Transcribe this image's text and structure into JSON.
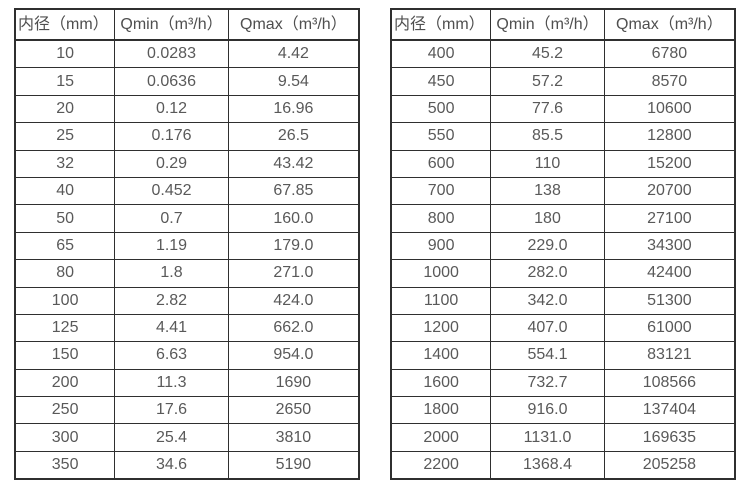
{
  "colors": {
    "border": "#2f2f2f",
    "header_text": "#4f4f4f",
    "cell_text": "#595959",
    "background": "#ffffff"
  },
  "chart_data": [
    {
      "type": "table",
      "title": "",
      "headers": [
        "内径（mm）",
        "Qmin（m³/h）",
        "Qmax（m³/h）"
      ],
      "rows": [
        [
          "10",
          "0.0283",
          "4.42"
        ],
        [
          "15",
          "0.0636",
          "9.54"
        ],
        [
          "20",
          "0.12",
          "16.96"
        ],
        [
          "25",
          "0.176",
          "26.5"
        ],
        [
          "32",
          "0.29",
          "43.42"
        ],
        [
          "40",
          "0.452",
          "67.85"
        ],
        [
          "50",
          "0.7",
          "160.0"
        ],
        [
          "65",
          "1.19",
          "179.0"
        ],
        [
          "80",
          "1.8",
          "271.0"
        ],
        [
          "100",
          "2.82",
          "424.0"
        ],
        [
          "125",
          "4.41",
          "662.0"
        ],
        [
          "150",
          "6.63",
          "954.0"
        ],
        [
          "200",
          "11.3",
          "1690"
        ],
        [
          "250",
          "17.6",
          "2650"
        ],
        [
          "300",
          "25.4",
          "3810"
        ],
        [
          "350",
          "34.6",
          "5190"
        ]
      ]
    },
    {
      "type": "table",
      "title": "",
      "headers": [
        "内径（mm）",
        "Qmin（m³/h）",
        "Qmax（m³/h）"
      ],
      "rows": [
        [
          "400",
          "45.2",
          "6780"
        ],
        [
          "450",
          "57.2",
          "8570"
        ],
        [
          "500",
          "77.6",
          "10600"
        ],
        [
          "550",
          "85.5",
          "12800"
        ],
        [
          "600",
          "110",
          "15200"
        ],
        [
          "700",
          "138",
          "20700"
        ],
        [
          "800",
          "180",
          "27100"
        ],
        [
          "900",
          "229.0",
          "34300"
        ],
        [
          "1000",
          "282.0",
          "42400"
        ],
        [
          "1100",
          "342.0",
          "51300"
        ],
        [
          "1200",
          "407.0",
          "61000"
        ],
        [
          "1400",
          "554.1",
          "83121"
        ],
        [
          "1600",
          "732.7",
          "108566"
        ],
        [
          "1800",
          "916.0",
          "137404"
        ],
        [
          "2000",
          "1131.0",
          "169635"
        ],
        [
          "2200",
          "1368.4",
          "205258"
        ]
      ]
    }
  ]
}
